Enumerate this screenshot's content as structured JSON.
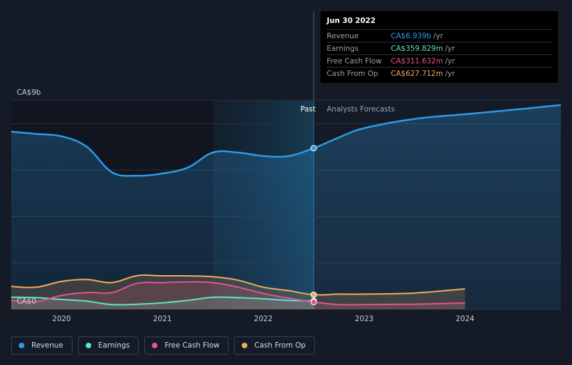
{
  "tooltip": {
    "date": "Jun 30 2022",
    "rows": [
      {
        "name": "Revenue",
        "value": "CA$6.939b",
        "unit": "/yr",
        "color": "#2f9be8"
      },
      {
        "name": "Earnings",
        "value": "CA$359.829m",
        "unit": "/yr",
        "color": "#5ee6c8"
      },
      {
        "name": "Free Cash Flow",
        "value": "CA$311.632m",
        "unit": "/yr",
        "color": "#e5558a"
      },
      {
        "name": "Cash From Op",
        "value": "CA$627.712m",
        "unit": "/yr",
        "color": "#f0ad5c"
      }
    ]
  },
  "sections": {
    "past": "Past",
    "forecast": "Analysts Forecasts"
  },
  "legend": [
    {
      "label": "Revenue",
      "color": "#2f9be8"
    },
    {
      "label": "Earnings",
      "color": "#5ee6c8"
    },
    {
      "label": "Free Cash Flow",
      "color": "#e5558a"
    },
    {
      "label": "Cash From Op",
      "color": "#f0ad5c"
    }
  ],
  "chart_data": {
    "type": "line",
    "ylabel_top": "CA$9b",
    "ylabel_bottom": "CA$0",
    "ylim": [
      0,
      9
    ],
    "xlim": [
      2019.5,
      2024.95
    ],
    "x_ticks": [
      2020,
      2021,
      2022,
      2023,
      2024
    ],
    "past_end": 2022.5,
    "forecast_region_start": 2021.5,
    "units": "CA$ billions",
    "series": [
      {
        "name": "Revenue",
        "color": "#2f9be8",
        "x": [
          2019.5,
          2019.75,
          2020.0,
          2020.25,
          2020.5,
          2020.75,
          2021.0,
          2021.25,
          2021.5,
          2021.75,
          2022.0,
          2022.25,
          2022.5,
          2022.75,
          2023.0,
          2023.5,
          2024.0,
          2024.5,
          2024.95
        ],
        "y": [
          7.65,
          7.55,
          7.45,
          7.0,
          5.9,
          5.75,
          5.85,
          6.1,
          6.75,
          6.75,
          6.6,
          6.6,
          6.939,
          7.4,
          7.8,
          8.2,
          8.4,
          8.6,
          8.8
        ]
      },
      {
        "name": "Earnings",
        "color": "#5ee6c8",
        "x": [
          2019.5,
          2019.75,
          2020.0,
          2020.25,
          2020.5,
          2020.75,
          2021.0,
          2021.25,
          2021.5,
          2021.75,
          2022.0,
          2022.25,
          2022.5
        ],
        "y": [
          0.52,
          0.5,
          0.42,
          0.35,
          0.2,
          0.22,
          0.28,
          0.38,
          0.52,
          0.5,
          0.45,
          0.38,
          0.36
        ]
      },
      {
        "name": "Free Cash Flow",
        "color": "#e5558a",
        "x": [
          2019.5,
          2019.75,
          2020.0,
          2020.25,
          2020.5,
          2020.75,
          2021.0,
          2021.25,
          2021.5,
          2021.75,
          2022.0,
          2022.25,
          2022.5,
          2022.75,
          2023.0,
          2023.5,
          2024.0
        ],
        "y": [
          0.38,
          0.33,
          0.6,
          0.72,
          0.72,
          1.12,
          1.15,
          1.18,
          1.15,
          0.95,
          0.68,
          0.48,
          0.31,
          0.2,
          0.2,
          0.22,
          0.27
        ]
      },
      {
        "name": "Cash From Op",
        "color": "#f0ad5c",
        "x": [
          2019.5,
          2019.75,
          2020.0,
          2020.25,
          2020.5,
          2020.75,
          2021.0,
          2021.25,
          2021.5,
          2021.75,
          2022.0,
          2022.25,
          2022.5,
          2022.75,
          2023.0,
          2023.5,
          2024.0
        ],
        "y": [
          0.98,
          0.95,
          1.2,
          1.28,
          1.15,
          1.45,
          1.44,
          1.44,
          1.4,
          1.25,
          0.95,
          0.8,
          0.628,
          0.65,
          0.65,
          0.7,
          0.88
        ]
      }
    ]
  }
}
